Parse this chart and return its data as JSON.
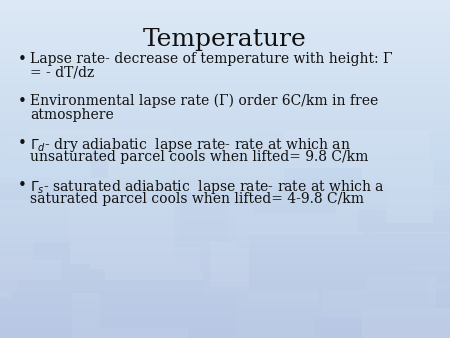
{
  "title": "Temperature",
  "bullet1_line1": "Lapse rate- decrease of temperature with height: Γ",
  "bullet1_line2": "= - dT/dz",
  "bullet2_line1": "Environmental lapse rate (Γ) order 6C/km in free",
  "bullet2_line2": "atmosphere",
  "bullet3_line1": "dry adiabatic  lapse rate- rate at which an",
  "bullet3_line2": "unsaturated parcel cools when lifted= 9.8 C/km",
  "bullet4_line1": "saturated adiabatic  lapse rate- rate at which a",
  "bullet4_line2": "saturated parcel cools when lifted= 4-9.8 C/km",
  "bg_top": "#dce8f5",
  "bg_bottom": "#b8c8e8",
  "text_color": "#111111",
  "title_fontsize": 18,
  "body_fontsize": 10,
  "bullet_char": "•"
}
